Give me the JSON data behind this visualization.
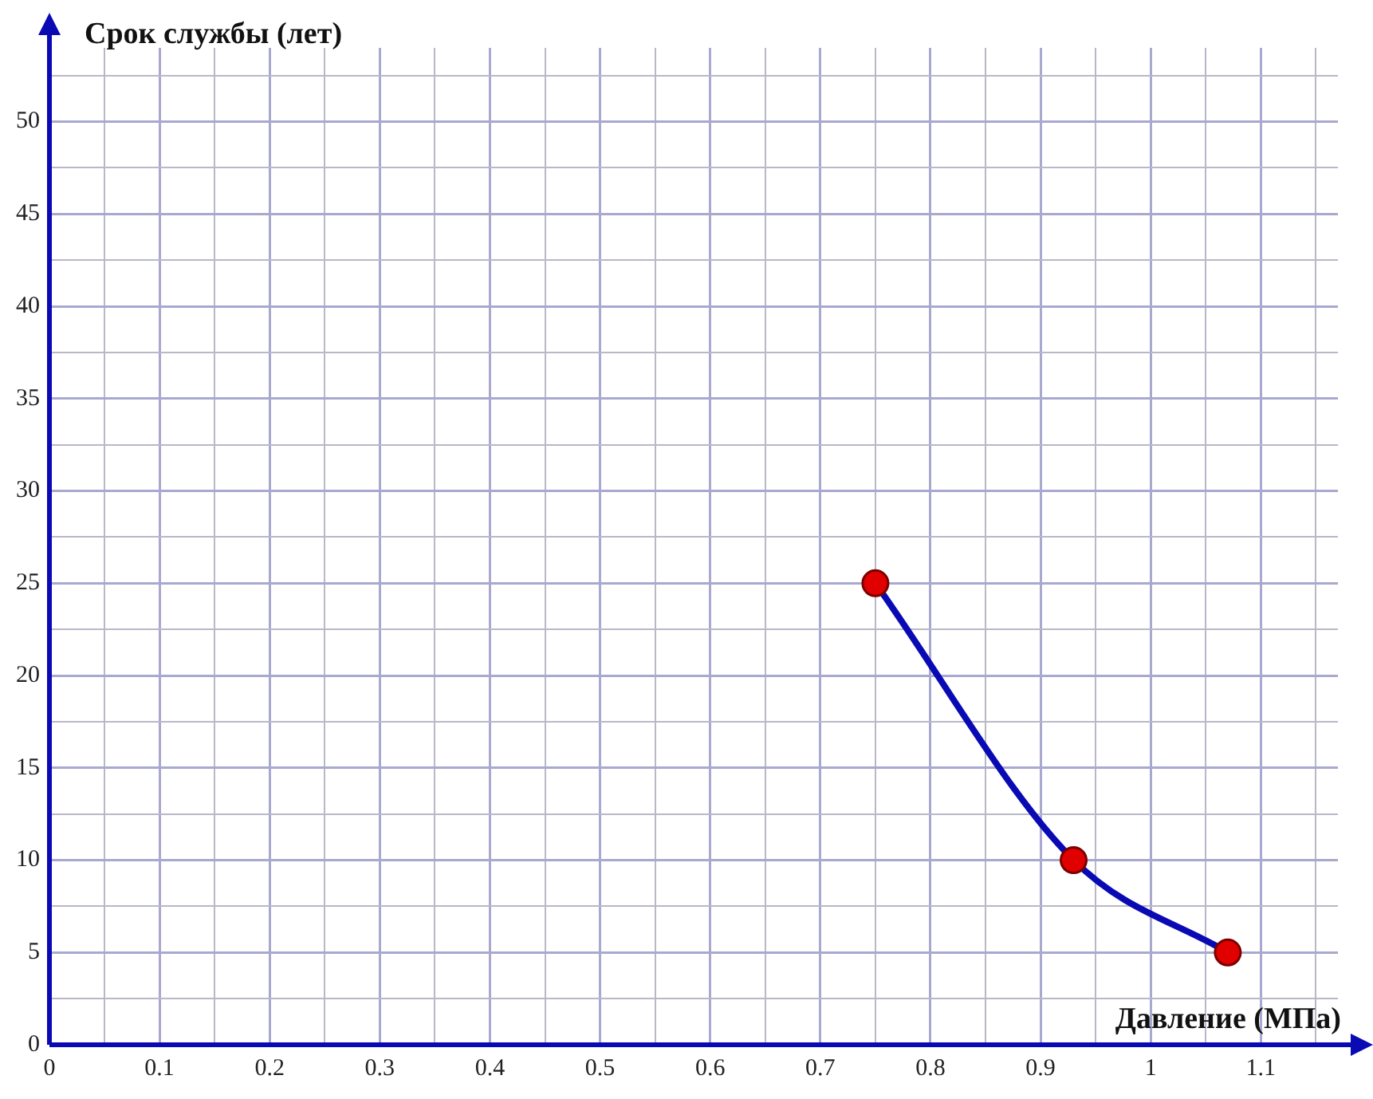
{
  "chart_data": {
    "type": "line",
    "xlabel": "Давление (МПа)",
    "ylabel": "Срок службы (лет)",
    "x": [
      0.75,
      0.93,
      1.07
    ],
    "series": [
      {
        "color": "#0a0ab4",
        "values": [
          25,
          10,
          5
        ]
      }
    ],
    "marker": "circle",
    "line_style": "solid",
    "grid": true,
    "legend": false,
    "xlim": [
      0,
      1.17
    ],
    "ylim": [
      0,
      54
    ],
    "xticks": [
      0,
      {
        "value": 0.05,
        "label": null
      },
      0.1,
      {
        "value": 0.15,
        "label": null
      },
      0.2,
      {
        "value": 0.25,
        "label": null
      },
      0.3,
      {
        "value": 0.35,
        "label": null
      },
      0.4,
      {
        "value": 0.45,
        "label": null
      },
      0.5,
      {
        "value": 0.55,
        "label": null
      },
      0.6,
      {
        "value": 0.65,
        "label": null
      },
      0.7,
      {
        "value": 0.75,
        "label": null
      },
      0.8,
      {
        "value": 0.85,
        "label": null
      },
      0.9,
      {
        "value": 0.95,
        "label": null
      },
      1,
      {
        "value": 1.05,
        "label": null
      },
      1.1,
      {
        "value": 1.15,
        "label": null
      }
    ],
    "yticks": [
      0,
      {
        "value": 2.5,
        "label": null
      },
      5,
      {
        "value": 7.5,
        "label": null
      },
      10,
      {
        "value": 12.5,
        "label": null
      },
      15,
      {
        "value": 17.5,
        "label": null
      },
      20,
      {
        "value": 22.5,
        "label": null
      },
      25,
      {
        "value": 27.5,
        "label": null
      },
      30,
      {
        "value": 32.5,
        "label": null
      },
      35,
      {
        "value": 37.5,
        "label": null
      },
      40,
      {
        "value": 42.5,
        "label": null
      },
      45,
      {
        "value": 47.5,
        "label": null
      },
      50,
      {
        "value": 52.5,
        "label": null
      }
    ]
  }
}
